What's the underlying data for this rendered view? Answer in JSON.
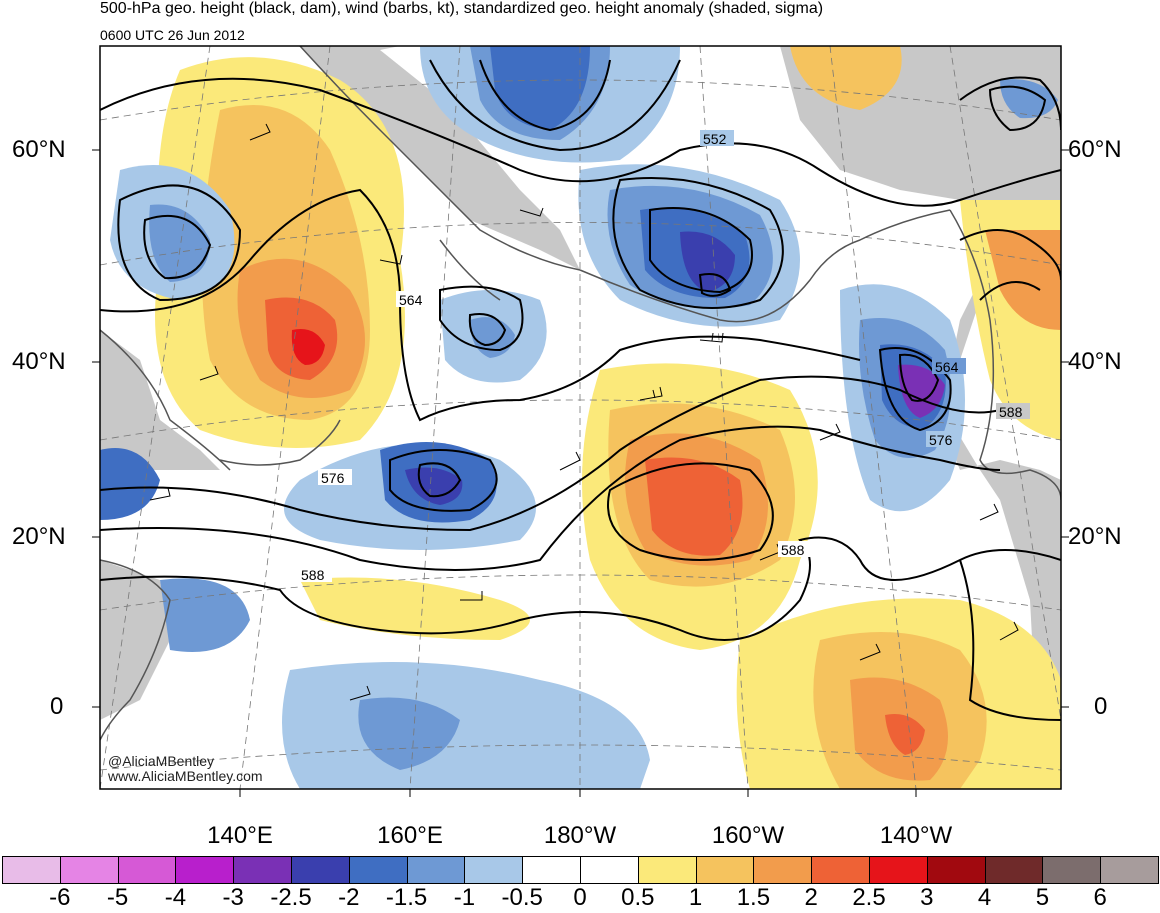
{
  "title": "500-hPa geo. height (black, dam), wind (barbs, kt), standardized geo. height anomaly (shaded, sigma)",
  "subtitle": "0600 UTC 26 Jun 2012",
  "map": {
    "latitude_labels": [
      "60°N",
      "40°N",
      "20°N",
      "0"
    ],
    "longitude_labels": [
      "140°E",
      "160°E",
      "180°W",
      "160°W",
      "140°W"
    ],
    "contour_labels": [
      "552",
      "564",
      "564",
      "576",
      "576",
      "588",
      "588",
      "588"
    ],
    "credits": [
      "@AliciaMBentley",
      "www.AliciaMBentley.com"
    ],
    "colors": {
      "land": "#c8c8c8",
      "coast": "#555555",
      "contour": "#000000"
    }
  },
  "colorbar": {
    "labels": [
      "-6",
      "-5",
      "-4",
      "-3",
      "-2.5",
      "-2",
      "-1.5",
      "-1",
      "-0.5",
      "0",
      "0.5",
      "1",
      "1.5",
      "2",
      "2.5",
      "3",
      "4",
      "5",
      "6"
    ],
    "colors": [
      "#e8bce8",
      "#e584e5",
      "#d659d6",
      "#b81fcc",
      "#7a30b5",
      "#3a3fae",
      "#3f6ec2",
      "#6e99d4",
      "#a8c8e8",
      "#ffffff",
      "#ffffff",
      "#fbe97a",
      "#f5c35e",
      "#f29c4c",
      "#ee6236",
      "#e6141a",
      "#a1090f",
      "#6f2a2a",
      "#7c6d6d",
      "#a79c9c"
    ]
  }
}
